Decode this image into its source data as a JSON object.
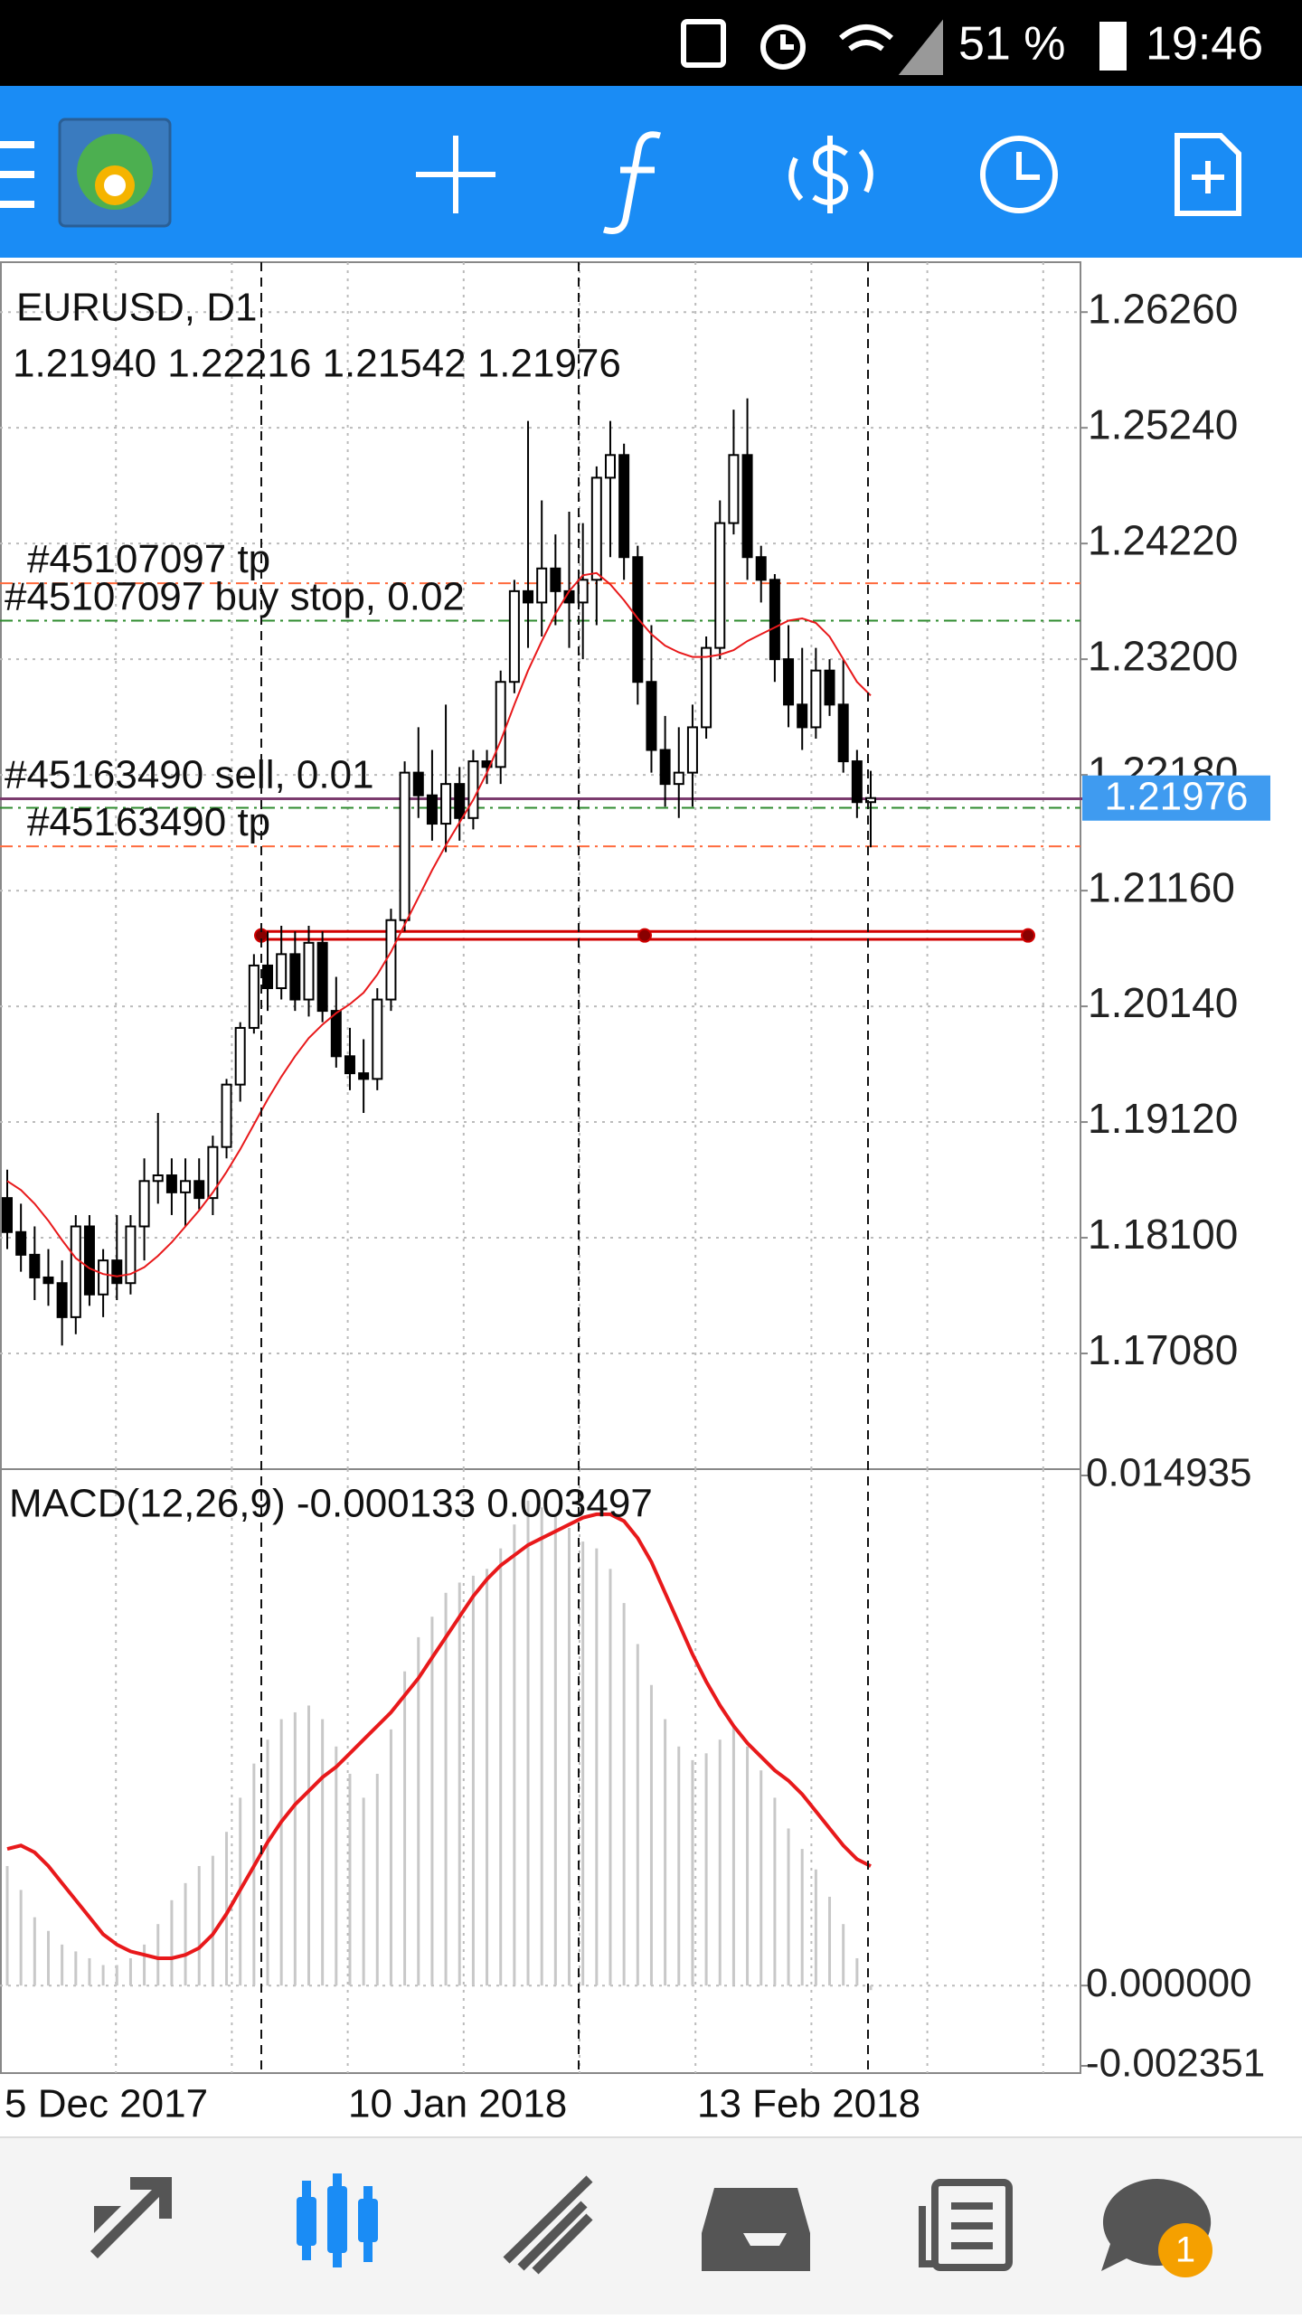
{
  "status_bar": {
    "battery": "51 %",
    "time": "19:46"
  },
  "chart": {
    "type": "candlestick",
    "symbol": "EURUSD, D1",
    "ohlc": "1.21940 1.22216 1.21542 1.21976",
    "ylim": [
      1.1606,
      1.267
    ],
    "yticks": [
      {
        "value": 1.2626,
        "label": "1.26260"
      },
      {
        "value": 1.2524,
        "label": "1.25240"
      },
      {
        "value": 1.2422,
        "label": "1.24220"
      },
      {
        "value": 1.232,
        "label": "1.23200"
      },
      {
        "value": 1.2218,
        "label": "1.22180"
      },
      {
        "value": 1.2116,
        "label": "1.21160"
      },
      {
        "value": 1.2014,
        "label": "1.20140"
      },
      {
        "value": 1.1912,
        "label": "1.19120"
      },
      {
        "value": 1.181,
        "label": "1.18100"
      },
      {
        "value": 1.1708,
        "label": "1.17080"
      }
    ],
    "current_price": {
      "value": 1.21976,
      "label": "1.21976"
    },
    "candles": [
      [
        1.1845,
        1.187,
        1.18,
        1.1815
      ],
      [
        1.1815,
        1.184,
        1.178,
        1.1795
      ],
      [
        1.1795,
        1.182,
        1.1755,
        1.1775
      ],
      [
        1.1775,
        1.18,
        1.175,
        1.177
      ],
      [
        1.177,
        1.179,
        1.1715,
        1.174
      ],
      [
        1.174,
        1.183,
        1.1725,
        1.182
      ],
      [
        1.182,
        1.183,
        1.175,
        1.176
      ],
      [
        1.176,
        1.18,
        1.174,
        1.179
      ],
      [
        1.179,
        1.183,
        1.1755,
        1.177
      ],
      [
        1.177,
        1.183,
        1.176,
        1.182
      ],
      [
        1.182,
        1.188,
        1.179,
        1.186
      ],
      [
        1.186,
        1.192,
        1.184,
        1.1865
      ],
      [
        1.1865,
        1.188,
        1.183,
        1.185
      ],
      [
        1.185,
        1.188,
        1.182,
        1.186
      ],
      [
        1.186,
        1.188,
        1.1835,
        1.1845
      ],
      [
        1.1845,
        1.19,
        1.183,
        1.189
      ],
      [
        1.189,
        1.195,
        1.188,
        1.1945
      ],
      [
        1.1945,
        1.2,
        1.193,
        1.1995
      ],
      [
        1.1995,
        1.206,
        1.199,
        1.205
      ],
      [
        1.205,
        1.208,
        1.201,
        1.203
      ],
      [
        1.203,
        1.2085,
        1.202,
        1.206
      ],
      [
        1.206,
        1.208,
        1.201,
        1.202
      ],
      [
        1.202,
        1.2085,
        1.2005,
        1.207
      ],
      [
        1.207,
        1.208,
        1.2,
        1.201
      ],
      [
        1.201,
        1.204,
        1.196,
        1.197
      ],
      [
        1.197,
        1.1995,
        1.194,
        1.1955
      ],
      [
        1.1955,
        1.1985,
        1.192,
        1.195
      ],
      [
        1.195,
        1.203,
        1.194,
        1.202
      ],
      [
        1.202,
        1.21,
        1.201,
        1.209
      ],
      [
        1.209,
        1.223,
        1.208,
        1.222
      ],
      [
        1.222,
        1.226,
        1.218,
        1.22
      ],
      [
        1.22,
        1.224,
        1.216,
        1.2175
      ],
      [
        1.2175,
        1.228,
        1.215,
        1.221
      ],
      [
        1.221,
        1.2225,
        1.216,
        1.218
      ],
      [
        1.218,
        1.224,
        1.217,
        1.223
      ],
      [
        1.223,
        1.224,
        1.221,
        1.2225
      ],
      [
        1.2225,
        1.231,
        1.221,
        1.23
      ],
      [
        1.23,
        1.239,
        1.229,
        1.238
      ],
      [
        1.238,
        1.253,
        1.233,
        1.237
      ],
      [
        1.237,
        1.246,
        1.234,
        1.24
      ],
      [
        1.24,
        1.243,
        1.235,
        1.238
      ],
      [
        1.238,
        1.245,
        1.233,
        1.237
      ],
      [
        1.237,
        1.244,
        1.232,
        1.239
      ],
      [
        1.239,
        1.249,
        1.235,
        1.248
      ],
      [
        1.248,
        1.253,
        1.241,
        1.25
      ],
      [
        1.25,
        1.251,
        1.239,
        1.241
      ],
      [
        1.241,
        1.242,
        1.228,
        1.23
      ],
      [
        1.23,
        1.235,
        1.222,
        1.224
      ],
      [
        1.224,
        1.227,
        1.219,
        1.221
      ],
      [
        1.221,
        1.226,
        1.218,
        1.222
      ],
      [
        1.222,
        1.228,
        1.219,
        1.226
      ],
      [
        1.226,
        1.234,
        1.225,
        1.233
      ],
      [
        1.233,
        1.246,
        1.232,
        1.244
      ],
      [
        1.244,
        1.254,
        1.243,
        1.25
      ],
      [
        1.25,
        1.255,
        1.239,
        1.241
      ],
      [
        1.241,
        1.242,
        1.237,
        1.239
      ],
      [
        1.239,
        1.2395,
        1.23,
        1.232
      ],
      [
        1.232,
        1.235,
        1.226,
        1.228
      ],
      [
        1.228,
        1.233,
        1.224,
        1.226
      ],
      [
        1.226,
        1.233,
        1.225,
        1.231
      ],
      [
        1.231,
        1.232,
        1.227,
        1.228
      ],
      [
        1.228,
        1.232,
        1.222,
        1.223
      ],
      [
        1.223,
        1.224,
        1.218,
        1.2194
      ],
      [
        1.2194,
        1.22216,
        1.21542,
        1.21976
      ]
    ],
    "ma": [
      1.186,
      1.1852,
      1.184,
      1.1825,
      1.1808,
      1.1792,
      1.1783,
      1.1778,
      1.1776,
      1.1778,
      1.1784,
      1.1794,
      1.1806,
      1.182,
      1.1834,
      1.185,
      1.1868,
      1.1888,
      1.191,
      1.1932,
      1.1952,
      1.197,
      1.1986,
      1.1998,
      1.2008,
      1.2016,
      1.2026,
      1.2042,
      1.2062,
      1.2086,
      1.211,
      1.2134,
      1.2156,
      1.2176,
      1.2196,
      1.222,
      1.2248,
      1.228,
      1.231,
      1.2336,
      1.236,
      1.238,
      1.2394,
      1.2396,
      1.2386,
      1.2372,
      1.2356,
      1.2342,
      1.2332,
      1.2326,
      1.2322,
      1.2322,
      1.2324,
      1.2328,
      1.2336,
      1.2342,
      1.2348,
      1.2354,
      1.2356,
      1.2352,
      1.234,
      1.232,
      1.23,
      1.2288
    ],
    "ma_color": "#e8191b",
    "orders": [
      {
        "label": "#45107097 tp",
        "price": 1.2387,
        "color": "#ff6a3d"
      },
      {
        "label": "#45107097 buy stop, 0.02",
        "price": 1.2354,
        "color": "#2e8b2e"
      },
      {
        "label": "#45163490 sell, 0.01",
        "price": 1.2197,
        "color": "#7b3b6e"
      },
      {
        "price": 1.2189,
        "color": "#2e8b2e"
      },
      {
        "label": "#45163490 tp",
        "price": 1.2155,
        "color": "#ff6a3d"
      }
    ],
    "channel": [
      1.208,
      1.2073
    ],
    "dates": [
      "5 Dec 2017",
      "10 Jan 2018",
      "13 Feb 2018"
    ],
    "macd": {
      "label": "MACD(12,26,9) -0.000133 0.003497",
      "ylim": [
        -0.002351,
        0.014935
      ],
      "yticks": [
        {
          "value": 0.014935,
          "label": "0.014935"
        },
        {
          "value": 0,
          "label": "0.000000"
        },
        {
          "value": -0.002351,
          "label": "-0.002351"
        }
      ],
      "histogram": [
        0.0035,
        0.0028,
        0.002,
        0.0016,
        0.0012,
        0.001,
        0.0008,
        0.0006,
        0.0006,
        0.0008,
        0.0012,
        0.0018,
        0.0025,
        0.003,
        0.0035,
        0.0038,
        0.0045,
        0.0055,
        0.0065,
        0.0072,
        0.0078,
        0.008,
        0.0082,
        0.0078,
        0.007,
        0.0062,
        0.0055,
        0.0062,
        0.0075,
        0.0092,
        0.0102,
        0.0108,
        0.0115,
        0.0118,
        0.012,
        0.0122,
        0.0128,
        0.0135,
        0.0142,
        0.014,
        0.0138,
        0.0134,
        0.013,
        0.0128,
        0.0122,
        0.0112,
        0.01,
        0.0088,
        0.0078,
        0.007,
        0.0066,
        0.0068,
        0.0072,
        0.0076,
        0.007,
        0.0063,
        0.0055,
        0.0046,
        0.004,
        0.0034,
        0.0026,
        0.0018,
        0.0008,
        -0.000133
      ],
      "signal": [
        0.004,
        0.0041,
        0.0039,
        0.0035,
        0.003,
        0.0025,
        0.002,
        0.0015,
        0.0012,
        0.001,
        0.0009,
        0.0008,
        0.0008,
        0.0009,
        0.0011,
        0.0015,
        0.0021,
        0.0028,
        0.0035,
        0.0042,
        0.0048,
        0.0053,
        0.0057,
        0.0061,
        0.0064,
        0.0068,
        0.0072,
        0.0076,
        0.008,
        0.0085,
        0.009,
        0.0096,
        0.0102,
        0.0108,
        0.0114,
        0.0119,
        0.0123,
        0.0126,
        0.0129,
        0.0131,
        0.0133,
        0.0135,
        0.0137,
        0.0138,
        0.0138,
        0.0136,
        0.0131,
        0.0124,
        0.0115,
        0.0106,
        0.0097,
        0.0089,
        0.0082,
        0.0076,
        0.0071,
        0.0067,
        0.0063,
        0.006,
        0.0056,
        0.0051,
        0.0046,
        0.0041,
        0.0037,
        0.003497
      ],
      "histogram_color": "#c8c8c8",
      "signal_color": "#e8191b"
    }
  },
  "bottom_nav": {
    "badge": "1"
  }
}
